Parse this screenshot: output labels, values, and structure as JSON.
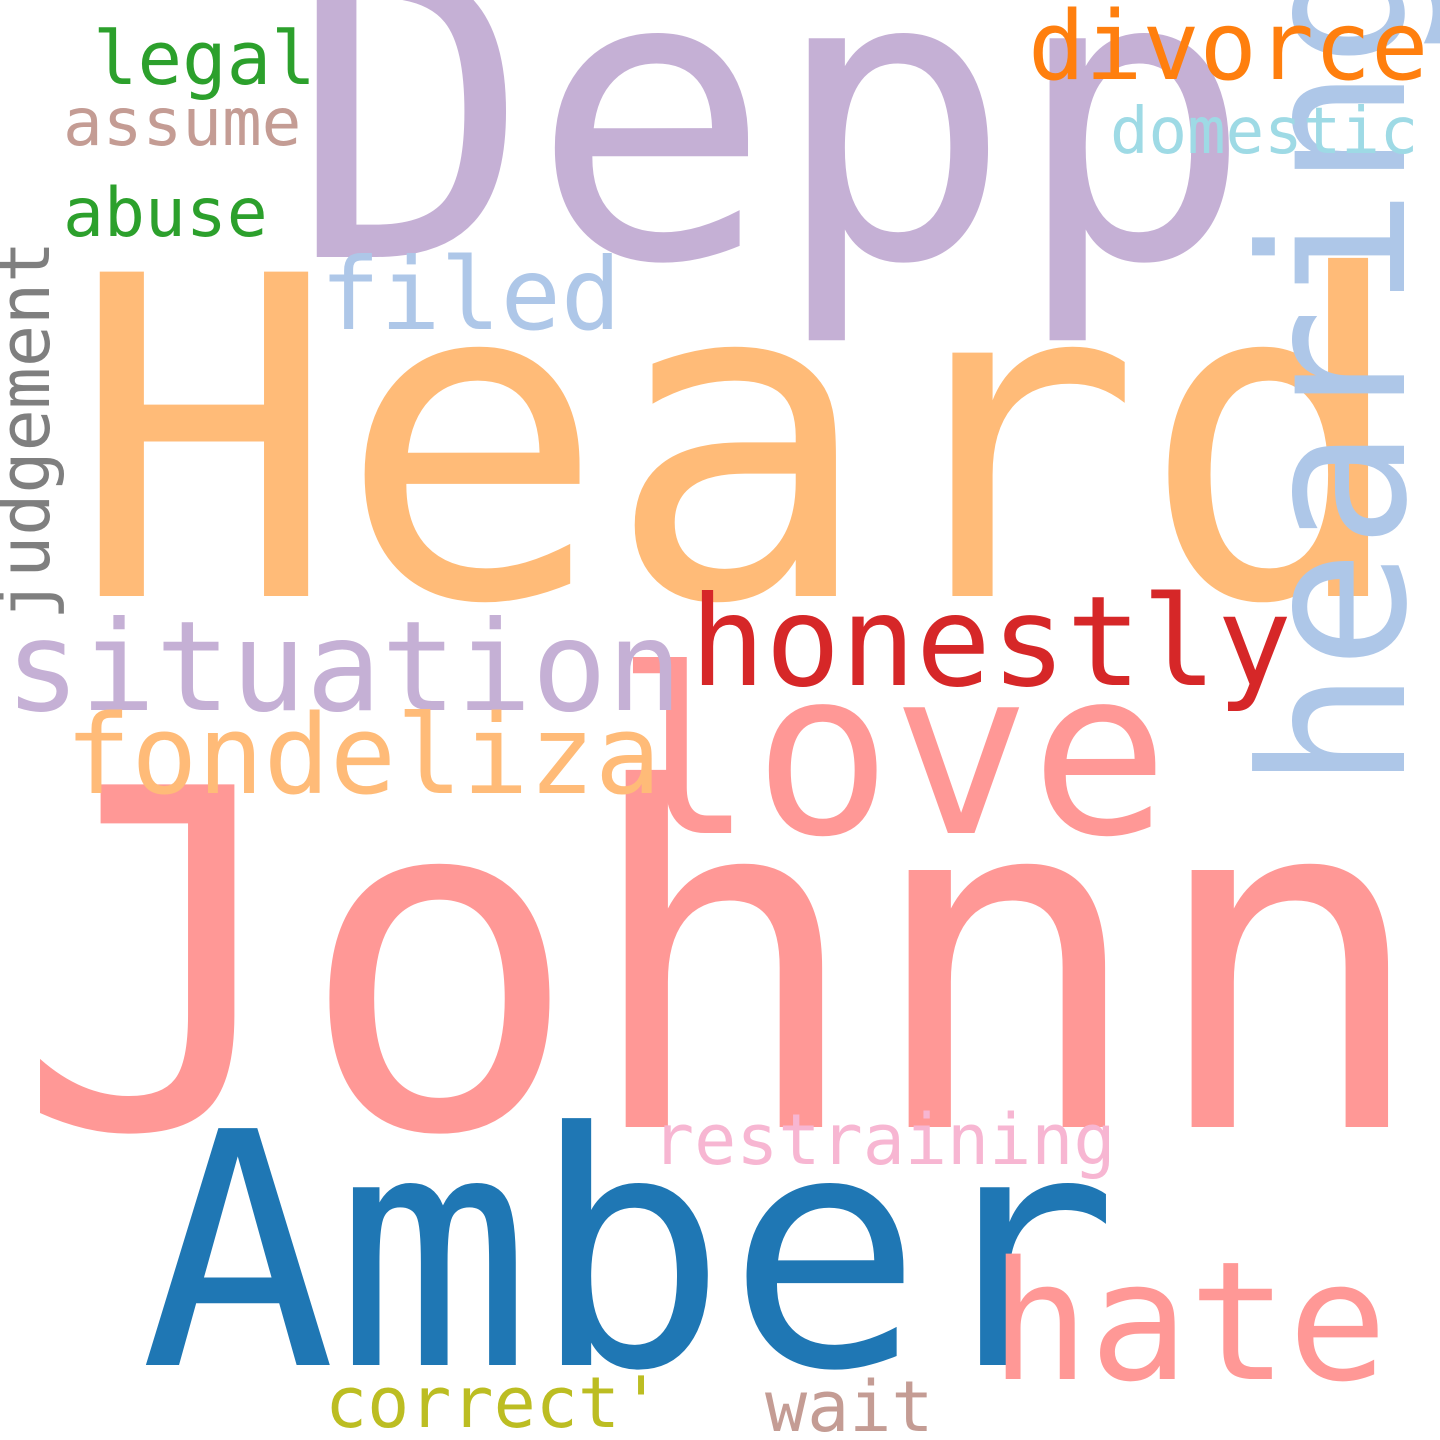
{
  "word_cloud": {
    "background": "#ffffff",
    "words": {
      "johnny": {
        "text": "Johnny",
        "color": "#ff9896"
      },
      "heard": {
        "text": "Heard",
        "color": "#ffbb78"
      },
      "depp": {
        "text": "Depp",
        "color": "#c5b0d5"
      },
      "amber": {
        "text": "Amber",
        "color": "#1f77b4"
      },
      "love": {
        "text": "love",
        "color": "#ff9896"
      },
      "hate": {
        "text": "hate",
        "color": "#ff9896"
      },
      "hearing": {
        "text": "hearing",
        "color": "#aec7e8"
      },
      "situation": {
        "text": "situation",
        "color": "#c5b0d5"
      },
      "honestly": {
        "text": "honestly",
        "color": "#d62728"
      },
      "fondeliza": {
        "text": "fondeliza",
        "color": "#ffbb78"
      },
      "filed": {
        "text": "filed",
        "color": "#aec7e8"
      },
      "divorce": {
        "text": "divorce",
        "color": "#ff7f0e"
      },
      "domestic": {
        "text": "domestic",
        "color": "#9edae5"
      },
      "legal": {
        "text": "legal",
        "color": "#2ca02c"
      },
      "assume": {
        "text": "assume",
        "color": "#c49c94"
      },
      "abuse": {
        "text": "abuse",
        "color": "#2ca02c"
      },
      "judgement": {
        "text": "judgement",
        "color": "#7f7f7f"
      },
      "restraining": {
        "text": "restraining",
        "color": "#f7b6d2"
      },
      "correct": {
        "text": "correct'",
        "color": "#bcbd22"
      },
      "wait": {
        "text": "wait",
        "color": "#c49c94"
      }
    }
  }
}
